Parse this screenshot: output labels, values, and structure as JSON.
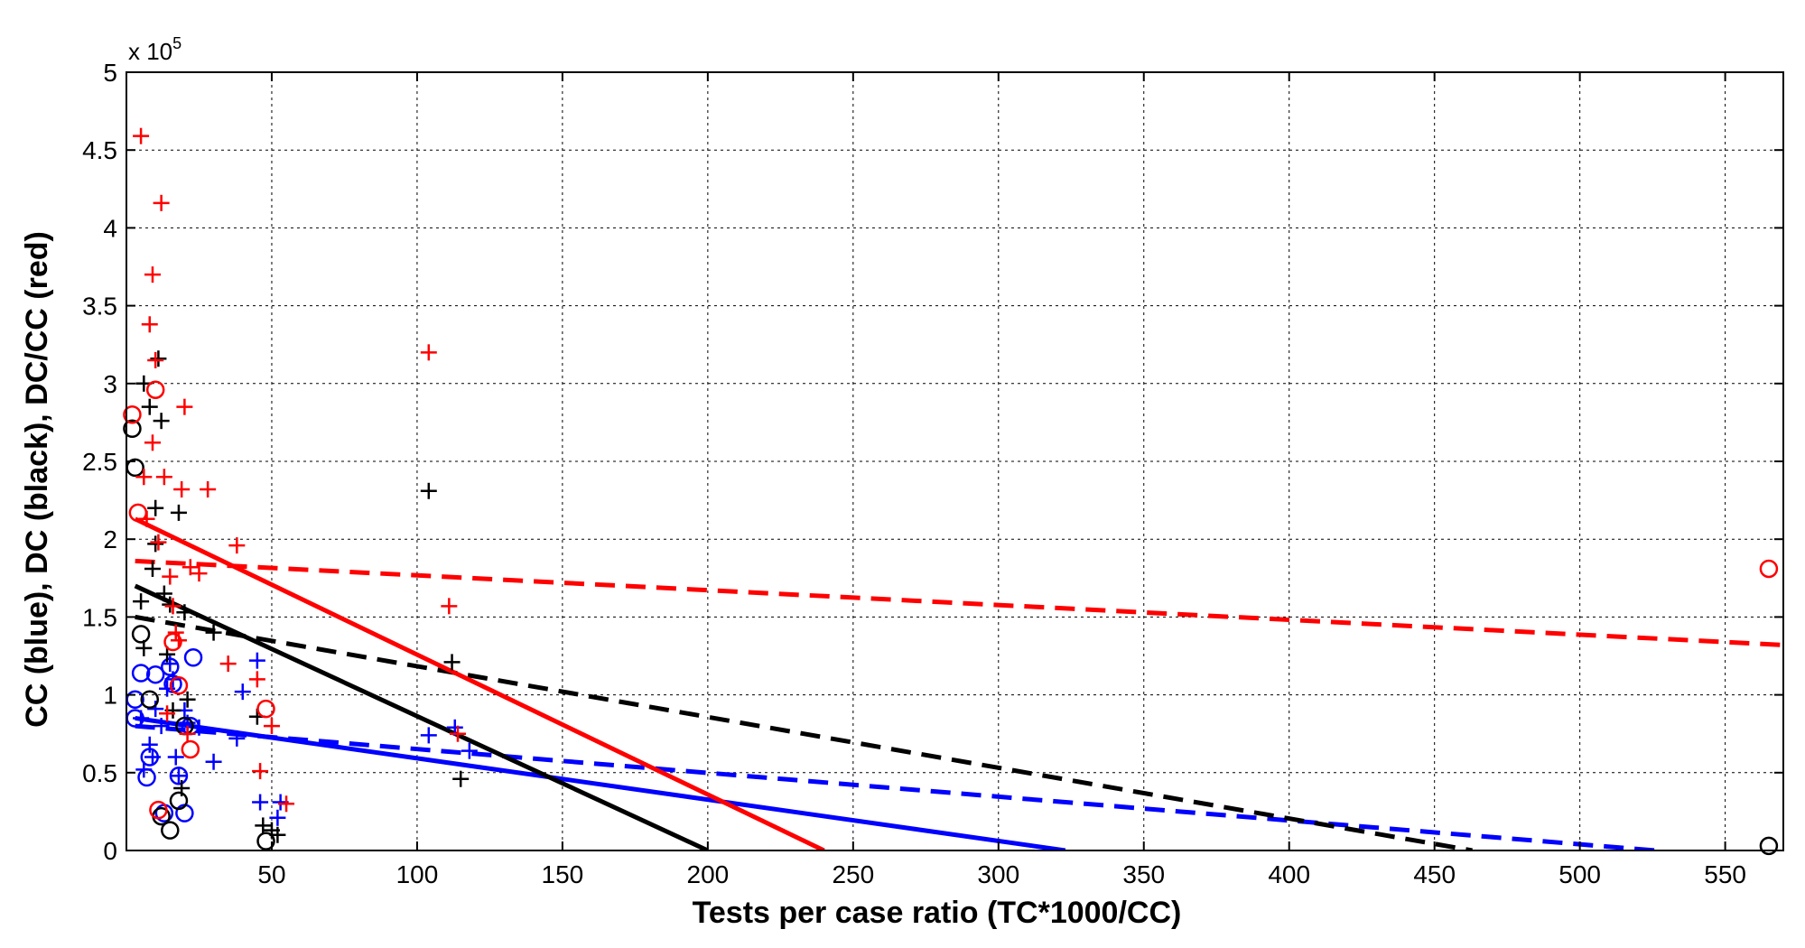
{
  "chart_data": {
    "type": "scatter",
    "title": "",
    "xlabel": "Tests per case ratio (TC*1000/CC)",
    "ylabel": "CC (blue), DC (black), DC/CC (red)",
    "xlim": [
      0,
      570
    ],
    "ylim": [
      0,
      500000
    ],
    "y_multiplier_label": {
      "base": "x 10",
      "exponent": "5"
    },
    "xticks": [
      50,
      100,
      150,
      200,
      250,
      300,
      350,
      400,
      450,
      500,
      550
    ],
    "yticks": [
      0,
      50000,
      100000,
      150000,
      200000,
      250000,
      300000,
      350000,
      400000,
      450000,
      500000
    ],
    "yticklabels": [
      "0",
      "0.5",
      "1",
      "1.5",
      "2",
      "2.5",
      "3",
      "3.5",
      "4",
      "4.5",
      "5"
    ],
    "grid": true,
    "colors": {
      "blue": "#0000ff",
      "black": "#000000",
      "red": "#ff0000"
    },
    "series": [
      {
        "color": "#0000ff",
        "marker": "circle",
        "points": [
          [
            3,
            97000
          ],
          [
            5,
            114000
          ],
          [
            7,
            47000
          ],
          [
            8,
            60000
          ],
          [
            10,
            113000
          ],
          [
            13,
            24000
          ],
          [
            15,
            118000
          ],
          [
            16,
            107000
          ],
          [
            18,
            48000
          ],
          [
            20,
            24000
          ],
          [
            22,
            80000
          ],
          [
            23,
            124000
          ],
          [
            3,
            85000
          ]
        ]
      },
      {
        "color": "#0000ff",
        "marker": "plus",
        "points": [
          [
            5,
            85000
          ],
          [
            6,
            52000
          ],
          [
            8,
            68000
          ],
          [
            9,
            60000
          ],
          [
            10,
            91000
          ],
          [
            12,
            80000
          ],
          [
            14,
            104000
          ],
          [
            15,
            120000
          ],
          [
            16,
            110000
          ],
          [
            17,
            60000
          ],
          [
            18,
            48000
          ],
          [
            20,
            90000
          ],
          [
            21,
            82000
          ],
          [
            25,
            79000
          ],
          [
            30,
            57000
          ],
          [
            38,
            72000
          ],
          [
            40,
            102000
          ],
          [
            45,
            122000
          ],
          [
            46,
            31000
          ],
          [
            52,
            21000
          ],
          [
            53,
            31000
          ],
          [
            104,
            74000
          ],
          [
            113,
            79000
          ],
          [
            118,
            64000
          ]
        ]
      },
      {
        "color": "#000000",
        "marker": "circle",
        "points": [
          [
            2,
            271000
          ],
          [
            3,
            246000
          ],
          [
            5,
            139000
          ],
          [
            8,
            97000
          ],
          [
            12,
            22000
          ],
          [
            15,
            13000
          ],
          [
            18,
            32000
          ],
          [
            20,
            80000
          ],
          [
            48,
            6000
          ],
          [
            565,
            3000
          ]
        ]
      },
      {
        "color": "#000000",
        "marker": "plus",
        "points": [
          [
            5,
            160000
          ],
          [
            6,
            130000
          ],
          [
            6,
            300000
          ],
          [
            8,
            285000
          ],
          [
            9,
            181000
          ],
          [
            10,
            220000
          ],
          [
            10,
            197000
          ],
          [
            11,
            316000
          ],
          [
            12,
            276000
          ],
          [
            13,
            165000
          ],
          [
            14,
            126000
          ],
          [
            15,
            158000
          ],
          [
            16,
            90000
          ],
          [
            18,
            217000
          ],
          [
            19,
            40000
          ],
          [
            20,
            153000
          ],
          [
            21,
            97000
          ],
          [
            30,
            140000
          ],
          [
            45,
            86000
          ],
          [
            47,
            16000
          ],
          [
            50,
            13000
          ],
          [
            52,
            10000
          ],
          [
            104,
            231000
          ],
          [
            112,
            121000
          ],
          [
            115,
            46000
          ]
        ]
      },
      {
        "color": "#ff0000",
        "marker": "circle",
        "points": [
          [
            2,
            280000
          ],
          [
            4,
            217000
          ],
          [
            10,
            296000
          ],
          [
            11,
            26000
          ],
          [
            16,
            134000
          ],
          [
            18,
            106000
          ],
          [
            22,
            65000
          ],
          [
            48,
            91000
          ],
          [
            565,
            181000
          ]
        ]
      },
      {
        "color": "#ff0000",
        "marker": "plus",
        "points": [
          [
            5,
            459000
          ],
          [
            6,
            240000
          ],
          [
            7,
            213000
          ],
          [
            8,
            338000
          ],
          [
            9,
            370000
          ],
          [
            9,
            262000
          ],
          [
            10,
            315000
          ],
          [
            11,
            198000
          ],
          [
            12,
            416000
          ],
          [
            13,
            240000
          ],
          [
            14,
            88000
          ],
          [
            15,
            176000
          ],
          [
            16,
            157000
          ],
          [
            17,
            140000
          ],
          [
            18,
            135000
          ],
          [
            19,
            232000
          ],
          [
            20,
            285000
          ],
          [
            21,
            75000
          ],
          [
            22,
            182000
          ],
          [
            25,
            178000
          ],
          [
            28,
            232000
          ],
          [
            35,
            120000
          ],
          [
            38,
            196000
          ],
          [
            45,
            110000
          ],
          [
            46,
            51000
          ],
          [
            50,
            80000
          ],
          [
            55,
            30000
          ],
          [
            104,
            320000
          ],
          [
            111,
            157000
          ],
          [
            114,
            75000
          ]
        ]
      }
    ],
    "lines": [
      {
        "color": "#0000ff",
        "style": "solid",
        "points": [
          [
            3,
            85000
          ],
          [
            323,
            0
          ]
        ]
      },
      {
        "color": "#0000ff",
        "style": "dashed",
        "points": [
          [
            3,
            80000
          ],
          [
            526,
            0
          ]
        ]
      },
      {
        "color": "#000000",
        "style": "solid",
        "points": [
          [
            3,
            170000
          ],
          [
            200,
            0
          ]
        ]
      },
      {
        "color": "#000000",
        "style": "dashed",
        "points": [
          [
            3,
            150000
          ],
          [
            463,
            0
          ]
        ]
      },
      {
        "color": "#ff0000",
        "style": "solid",
        "points": [
          [
            3,
            213000
          ],
          [
            240,
            0
          ]
        ]
      },
      {
        "color": "#ff0000",
        "style": "dashed",
        "points": [
          [
            3,
            186000
          ],
          [
            570,
            132000
          ]
        ]
      }
    ]
  }
}
